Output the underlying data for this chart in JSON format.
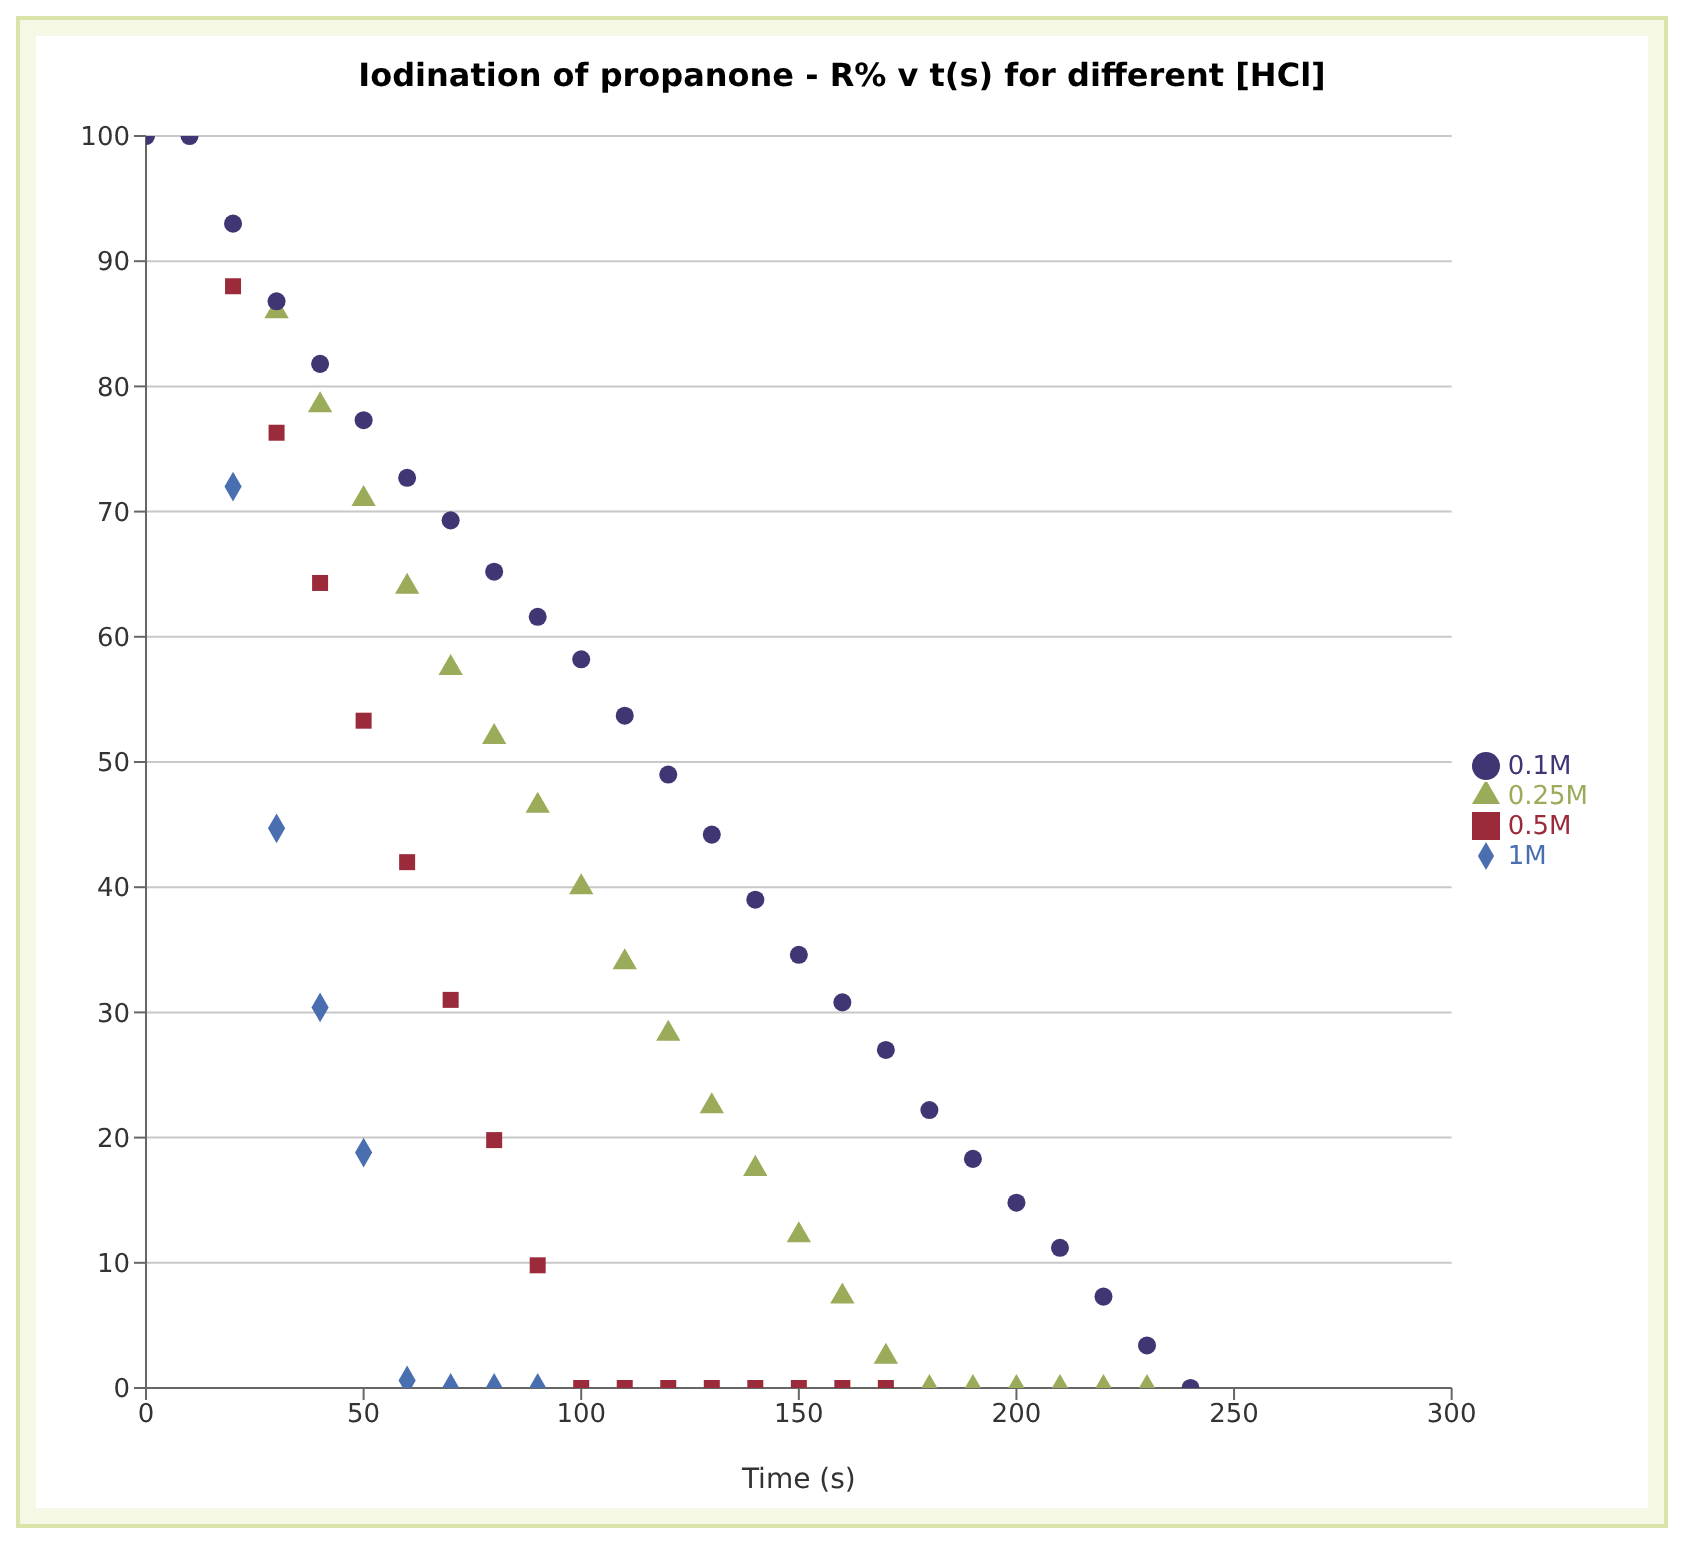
{
  "chart_data": {
    "type": "scatter",
    "title": "Iodination of propanone - R% v t(s) for different [HCl]",
    "xlabel": "Time (s)",
    "xlim": [
      0,
      300
    ],
    "xticks": [
      0,
      50,
      100,
      150,
      200,
      250,
      300
    ],
    "ylim": [
      0,
      100
    ],
    "yticks": [
      0,
      10,
      20,
      30,
      40,
      50,
      60,
      70,
      80,
      90,
      100
    ],
    "grid": "y",
    "legend": "right",
    "series": [
      {
        "name": "1M",
        "color": "#4a6fb0",
        "marker": "diamond",
        "x": [
          20,
          30,
          40,
          50,
          60,
          70,
          80,
          90
        ],
        "values": [
          72,
          44.7,
          30.4,
          18.8,
          0.6,
          0,
          0,
          0
        ]
      },
      {
        "name": "0.5M",
        "color": "#9b2a3a",
        "marker": "square",
        "x": [
          20,
          30,
          40,
          50,
          60,
          70,
          80,
          90,
          100,
          110,
          120,
          130,
          140,
          150,
          160,
          170
        ],
        "values": [
          88,
          76.3,
          64.3,
          53.3,
          42,
          31,
          19.8,
          9.8,
          0,
          0,
          0,
          0,
          0,
          0,
          0,
          0
        ]
      },
      {
        "name": "0.25M",
        "color": "#9aab5a",
        "marker": "triangle",
        "x": [
          30,
          40,
          50,
          60,
          70,
          80,
          90,
          100,
          110,
          120,
          130,
          140,
          150,
          160,
          170,
          180,
          190,
          200,
          210,
          220,
          230
        ],
        "values": [
          86,
          78.5,
          71,
          64,
          57.5,
          52,
          46.5,
          40,
          34,
          28.3,
          22.5,
          17.5,
          12.2,
          7.3,
          2.5,
          0,
          0,
          0,
          0,
          0,
          0
        ]
      },
      {
        "name": "0.1M",
        "color": "#3f3673",
        "marker": "circle",
        "x": [
          0,
          10,
          20,
          30,
          40,
          50,
          60,
          70,
          80,
          90,
          100,
          110,
          120,
          130,
          140,
          150,
          160,
          170,
          180,
          190,
          200,
          210,
          220,
          230,
          240
        ],
        "values": [
          100,
          100,
          93,
          86.8,
          81.8,
          77.3,
          72.7,
          69.3,
          65.2,
          61.6,
          58.2,
          53.7,
          49,
          44.2,
          39,
          34.6,
          30.8,
          27,
          22.2,
          18.3,
          14.8,
          11.2,
          7.3,
          3.4,
          0
        ]
      }
    ]
  }
}
